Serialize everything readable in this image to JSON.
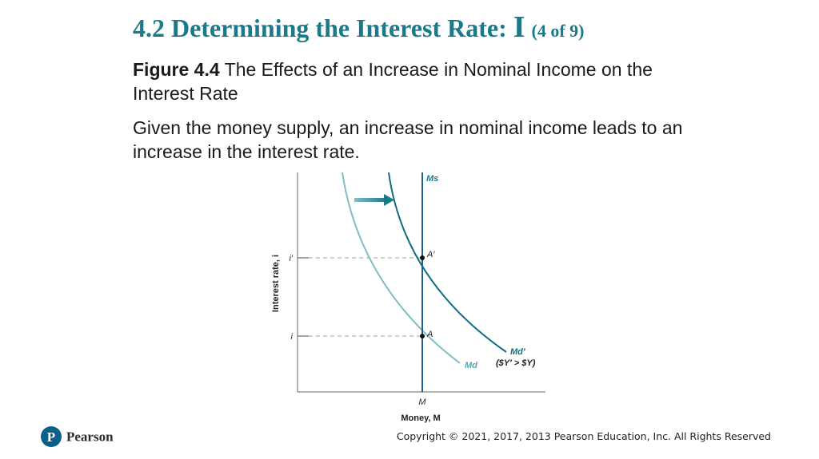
{
  "title": {
    "main": "4.2 Determining the Interest Rate:",
    "roman": "I",
    "count": "(4 of 9)"
  },
  "caption": {
    "label": "Figure 4.4",
    "text": "The Effects of an Increase in Nominal Income on the Interest Rate"
  },
  "description": "Given the money supply, an increase in nominal income leads to an increase in the interest rate.",
  "diagram": {
    "y_axis_label": "Interest rate, i",
    "x_axis_label": "Money, M",
    "tick_i_prime": "i′",
    "tick_i": "i",
    "tick_M": "M",
    "label_supply": "Ms",
    "label_point_a": "A",
    "label_point_a_prime": "A′",
    "label_demand": "Md",
    "label_demand_shifted": "Md′",
    "shift_condition": "($Y′ > $Y)",
    "colors": {
      "accent": "#1b7a8a",
      "demand_original": "#7fbfc4",
      "demand_shifted": "#0f6f80",
      "supply": "#1e5f8e",
      "axes": "#999999",
      "guides": "#b5b5b5"
    }
  },
  "footer": {
    "logo_text": "Pearson",
    "copyright": "Copyright © 2021, 2017, 2013 Pearson Education, Inc. All Rights Reserved"
  }
}
